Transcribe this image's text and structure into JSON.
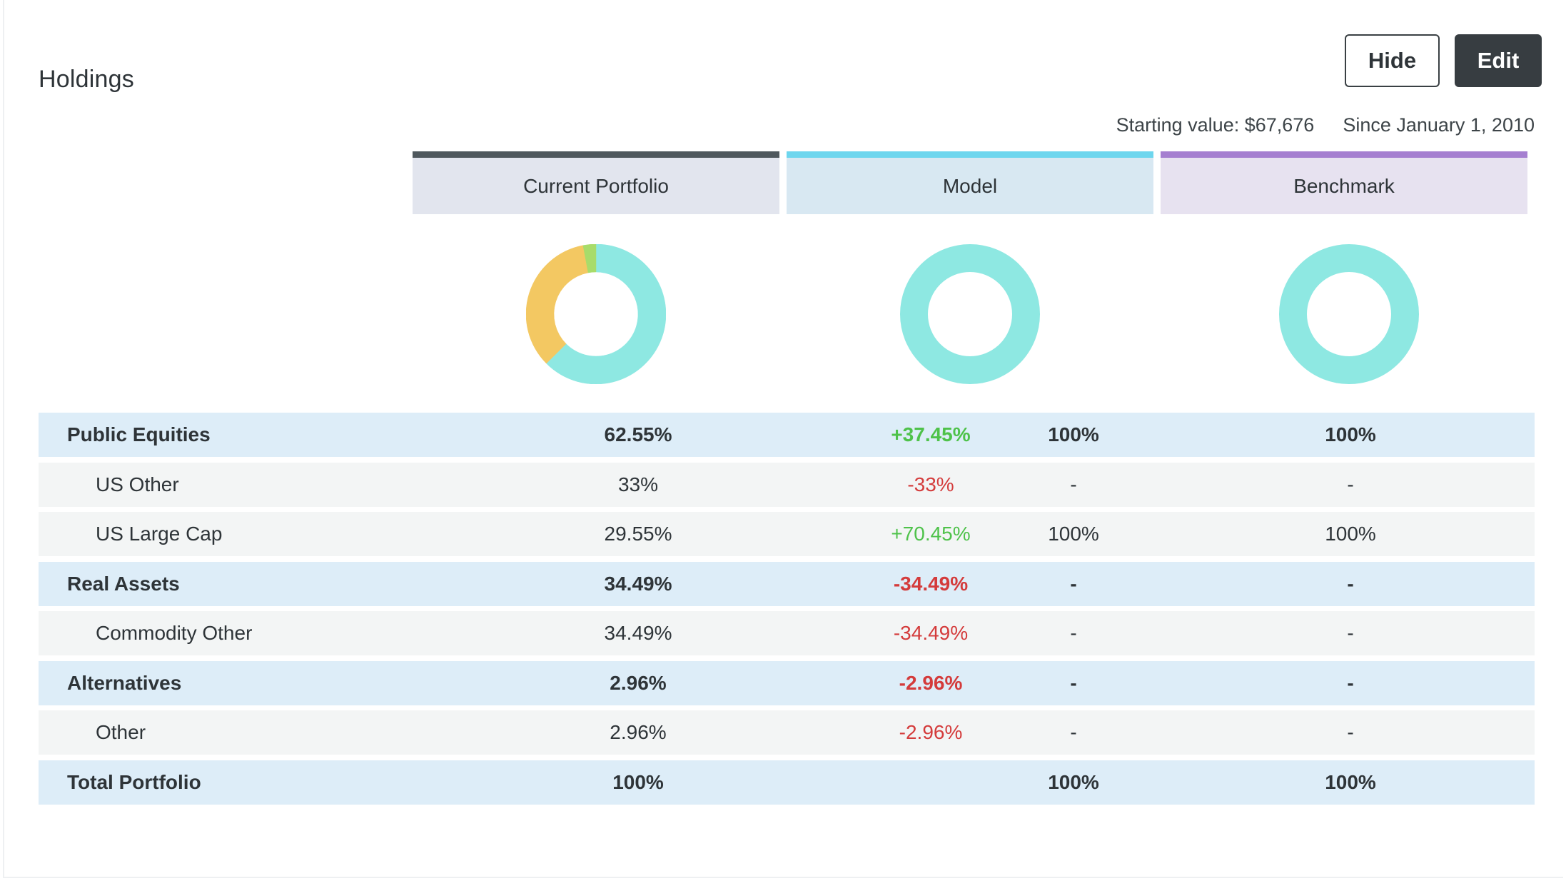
{
  "header": {
    "title": "Holdings",
    "hide_label": "Hide",
    "edit_label": "Edit",
    "starting_value": "Starting value: $67,676",
    "since": "Since January 1, 2010"
  },
  "columns": {
    "current": "Current Portfolio",
    "model": "Model",
    "benchmark": "Benchmark"
  },
  "colors": {
    "current_bar": "#4f585d",
    "model_bar": "#6ed6ee",
    "benchmark_bar": "#a57fd0",
    "equities": "#8ee8e2",
    "real_assets": "#f3c862",
    "alternatives": "#a8dc6a"
  },
  "chart_data": [
    {
      "type": "pie",
      "categories": [
        "Public Equities",
        "Real Assets",
        "Alternatives"
      ],
      "values": [
        62.55,
        34.49,
        2.96
      ],
      "slices": [
        {
          "category": "US Large Cap",
          "value": 29.55,
          "color": "#8ee8e2"
        },
        {
          "category": "US Other",
          "value": 33,
          "color": "#8ee8e2"
        },
        {
          "category": "Commodity Other",
          "value": 34.49,
          "color": "#f3c862"
        },
        {
          "category": "Other",
          "value": 2.96,
          "color": "#a8dc6a"
        }
      ]
    },
    {
      "type": "pie",
      "categories": [
        "Public Equities"
      ],
      "values": [
        100
      ],
      "slices": [
        {
          "category": "US Large Cap",
          "value": 100,
          "color": "#8ee8e2"
        }
      ]
    },
    {
      "type": "pie",
      "categories": [
        "Public Equities"
      ],
      "values": [
        100
      ],
      "slices": [
        {
          "category": "US Large Cap",
          "value": 100,
          "color": "#8ee8e2"
        }
      ]
    }
  ],
  "rows": [
    {
      "kind": "group",
      "name": "Public Equities",
      "current": "62.55%",
      "diff": "+37.45%",
      "diff_sign": "pos",
      "model": "100%",
      "benchmark": "100%"
    },
    {
      "kind": "sub",
      "name": "US Other",
      "current": "33%",
      "diff": "-33%",
      "diff_sign": "neg",
      "model": "-",
      "benchmark": "-"
    },
    {
      "kind": "sub",
      "name": "US Large Cap",
      "current": "29.55%",
      "diff": "+70.45%",
      "diff_sign": "pos",
      "model": "100%",
      "benchmark": "100%"
    },
    {
      "kind": "group",
      "name": "Real Assets",
      "current": "34.49%",
      "diff": "-34.49%",
      "diff_sign": "neg",
      "model": "-",
      "benchmark": "-"
    },
    {
      "kind": "sub",
      "name": "Commodity Other",
      "current": "34.49%",
      "diff": "-34.49%",
      "diff_sign": "neg",
      "model": "-",
      "benchmark": "-"
    },
    {
      "kind": "group",
      "name": "Alternatives",
      "current": "2.96%",
      "diff": "-2.96%",
      "diff_sign": "neg",
      "model": "-",
      "benchmark": "-"
    },
    {
      "kind": "sub",
      "name": "Other",
      "current": "2.96%",
      "diff": "-2.96%",
      "diff_sign": "neg",
      "model": "-",
      "benchmark": "-"
    },
    {
      "kind": "group",
      "name": "Total Portfolio",
      "current": "100%",
      "diff": "",
      "diff_sign": "",
      "model": "100%",
      "benchmark": "100%"
    }
  ]
}
